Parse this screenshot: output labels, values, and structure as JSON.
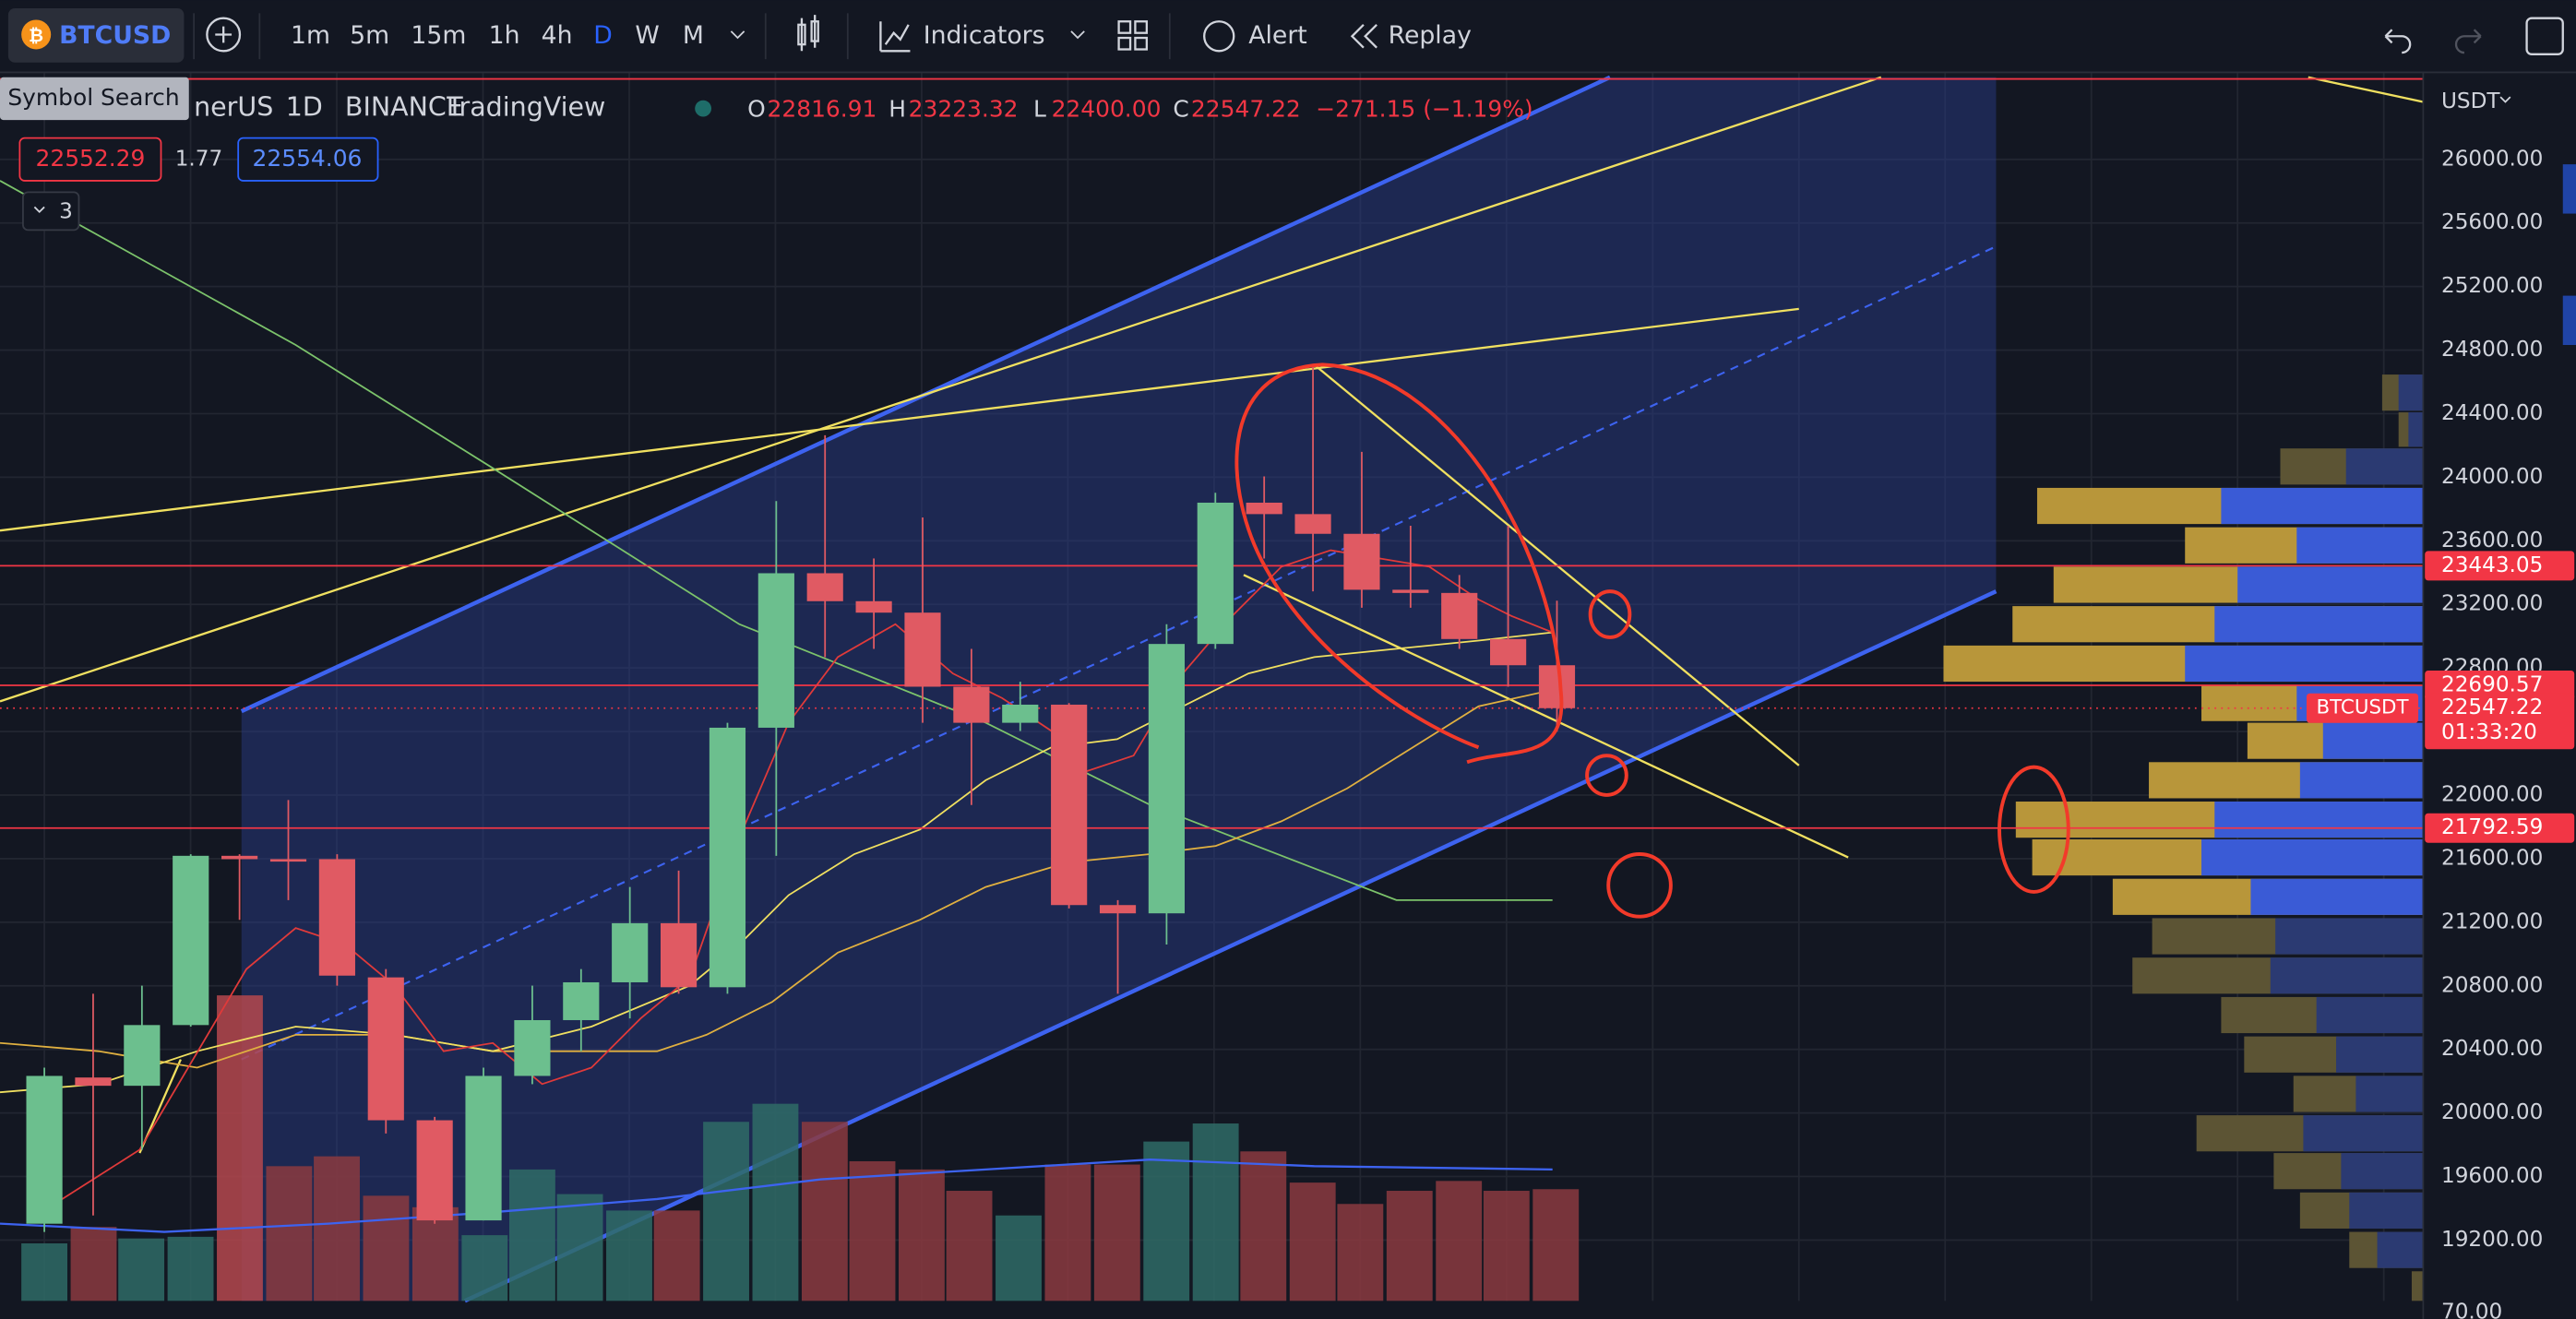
{
  "toolbar": {
    "symbol": "BTCUSD",
    "intervals": [
      "1m",
      "5m",
      "15m",
      "1h",
      "4h",
      "D",
      "W",
      "M"
    ],
    "indicators": "Indicators",
    "alert": "Alert",
    "replay": "Replay"
  },
  "tooltip": "Symbol Search",
  "legend": {
    "symbol": "nerUS",
    "interval": "1D",
    "exchange": "BINANCE",
    "source": "TradingView",
    "o_label": "O",
    "open": "22816.91",
    "h_label": "H",
    "high": "23223.32",
    "l_label": "L",
    "low": "22400.00",
    "c_label": "C",
    "close": "22547.22",
    "change": "−271.15 (−1.19%)",
    "bid": "22552.29",
    "spread": "1.77",
    "ask": "22554.06",
    "indicator_count": "3"
  },
  "price_axis": {
    "currency": "USDT",
    "ticks": [
      {
        "value": 26000,
        "label": "26000.00"
      },
      {
        "value": 25600,
        "label": "25600.00"
      },
      {
        "value": 25200,
        "label": "25200.00"
      },
      {
        "value": 24800,
        "label": "24800.00"
      },
      {
        "value": 24400,
        "label": "24400.00"
      },
      {
        "value": 24000,
        "label": "24000.00"
      },
      {
        "value": 23600,
        "label": "23600.00"
      },
      {
        "value": 23200,
        "label": "23200.00"
      },
      {
        "value": 22800,
        "label": "22800.00"
      },
      {
        "value": 22400,
        "label": "22400.00"
      },
      {
        "value": 22000,
        "label": "22000.00"
      },
      {
        "value": 21600,
        "label": "21600.00"
      },
      {
        "value": 21200,
        "label": "21200.00"
      },
      {
        "value": 20800,
        "label": "20800.00"
      },
      {
        "value": 20400,
        "label": "20400.00"
      },
      {
        "value": 20000,
        "label": "20000.00"
      },
      {
        "value": 19600,
        "label": "19600.00"
      },
      {
        "value": 19200,
        "label": "19200.00"
      }
    ],
    "volume_label": "70.00"
  },
  "levels": [
    23443.05,
    22690.57,
    21792.59
  ],
  "last_price": 22547.22,
  "countdown": "01:33:20",
  "last_symbol": "BTCUSDT",
  "candles": {
    "open": [
      19303,
      20223,
      20171,
      20553,
      21618,
      21597,
      21597,
      20853,
      19954,
      19324,
      20233,
      20584,
      20822,
      21194,
      20791,
      22424,
      23396,
      23220,
      23148,
      22682,
      22455,
      22569,
      21308,
      21256,
      22951,
      23840,
      23768,
      23644,
      23292,
      23272,
      22982,
      22817
    ],
    "high": [
      20285,
      20750,
      20801,
      21628,
      21628,
      21969,
      21628,
      20905,
      19975,
      20285,
      20801,
      20905,
      21422,
      21525,
      22455,
      23850,
      24264,
      23489,
      23747,
      22920,
      22713,
      22579,
      21339,
      23075,
      23902,
      24005,
      24708,
      24160,
      23695,
      23385,
      23695,
      23223
    ],
    "low": [
      19251,
      19355,
      19768,
      20543,
      21215,
      21339,
      20801,
      19871,
      19303,
      19324,
      20181,
      20388,
      20595,
      20750,
      20750,
      21618,
      22868,
      22920,
      22455,
      21938,
      22403,
      21287,
      20750,
      21060,
      22920,
      23489,
      23282,
      23179,
      23179,
      22920,
      22682,
      22400
    ],
    "close": [
      20233,
      20171,
      20553,
      21618,
      21597,
      21587,
      20864,
      19954,
      19324,
      20233,
      20584,
      20822,
      21194,
      20791,
      22424,
      23396,
      23220,
      23148,
      22682,
      22455,
      22569,
      21308,
      21256,
      22951,
      23840,
      23768,
      23644,
      23292,
      23272,
      22982,
      22817,
      22547
    ]
  }
}
